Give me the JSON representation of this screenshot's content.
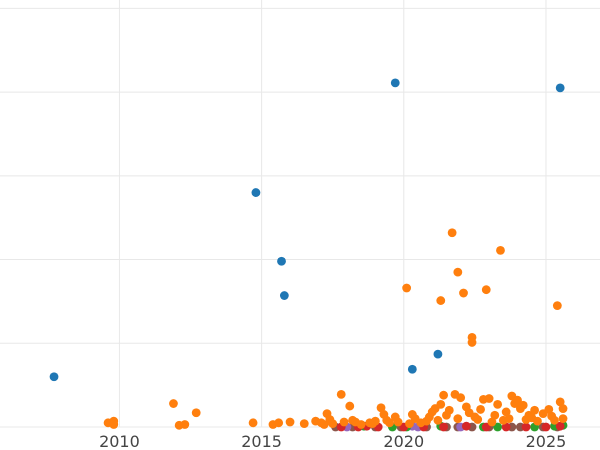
{
  "chart_data": {
    "type": "scatter",
    "title": "",
    "xlabel": "",
    "ylabel": "",
    "xlim": [
      2005.8,
      2026.9
    ],
    "ylim": [
      0,
      510
    ],
    "x_ticks": [
      2010,
      2015,
      2020,
      2025
    ],
    "x_tick_labels": [
      "2010",
      "2015",
      "2020",
      "2025"
    ],
    "y_gridlines": [
      0,
      100,
      200,
      300,
      400,
      500
    ],
    "grid": true,
    "legend": "none",
    "series": [
      {
        "color": "#1f77b4",
        "points": [
          [
            2007.7,
            60
          ],
          [
            2014.8,
            280
          ],
          [
            2015.7,
            198
          ],
          [
            2015.8,
            157
          ],
          [
            2019.7,
            411
          ],
          [
            2020.3,
            69
          ],
          [
            2021.2,
            87
          ],
          [
            2025.5,
            405
          ]
        ]
      },
      {
        "color": "#ff7f0e",
        "points": [
          [
            2009.6,
            5
          ],
          [
            2009.8,
            7
          ],
          [
            2009.8,
            3
          ],
          [
            2011.9,
            28
          ],
          [
            2012.1,
            2
          ],
          [
            2012.3,
            3
          ],
          [
            2012.7,
            17
          ],
          [
            2014.7,
            5
          ],
          [
            2015.4,
            3
          ],
          [
            2015.6,
            5
          ],
          [
            2016.0,
            6
          ],
          [
            2016.5,
            4
          ],
          [
            2016.9,
            7
          ],
          [
            2017.1,
            5
          ],
          [
            2017.2,
            3
          ],
          [
            2017.3,
            16
          ],
          [
            2017.4,
            9
          ],
          [
            2017.5,
            4
          ],
          [
            2017.8,
            39
          ],
          [
            2017.9,
            6
          ],
          [
            2018.1,
            25
          ],
          [
            2018.2,
            8
          ],
          [
            2018.3,
            6
          ],
          [
            2018.5,
            3
          ],
          [
            2018.8,
            5
          ],
          [
            2018.9,
            4
          ],
          [
            2019.0,
            7
          ],
          [
            2019.2,
            23
          ],
          [
            2019.3,
            15
          ],
          [
            2019.4,
            8
          ],
          [
            2019.5,
            5
          ],
          [
            2019.7,
            12
          ],
          [
            2019.8,
            6
          ],
          [
            2020.1,
            166
          ],
          [
            2020.2,
            4
          ],
          [
            2020.3,
            15
          ],
          [
            2020.4,
            10
          ],
          [
            2020.6,
            5
          ],
          [
            2020.8,
            7
          ],
          [
            2020.9,
            12
          ],
          [
            2021.0,
            18
          ],
          [
            2021.1,
            22
          ],
          [
            2021.2,
            8
          ],
          [
            2021.3,
            27
          ],
          [
            2021.3,
            151
          ],
          [
            2021.4,
            38
          ],
          [
            2021.5,
            14
          ],
          [
            2021.6,
            20
          ],
          [
            2021.7,
            232
          ],
          [
            2021.8,
            39
          ],
          [
            2021.9,
            185
          ],
          [
            2021.9,
            10
          ],
          [
            2022.0,
            35
          ],
          [
            2022.1,
            160
          ],
          [
            2022.2,
            24
          ],
          [
            2022.3,
            17
          ],
          [
            2022.4,
            107
          ],
          [
            2022.4,
            101
          ],
          [
            2022.5,
            12
          ],
          [
            2022.6,
            9
          ],
          [
            2022.7,
            21
          ],
          [
            2022.8,
            33
          ],
          [
            2022.9,
            164
          ],
          [
            2023.0,
            34
          ],
          [
            2023.1,
            6
          ],
          [
            2023.2,
            14
          ],
          [
            2023.3,
            27
          ],
          [
            2023.4,
            211
          ],
          [
            2023.5,
            8
          ],
          [
            2023.6,
            18
          ],
          [
            2023.7,
            10
          ],
          [
            2023.8,
            37
          ],
          [
            2023.9,
            28
          ],
          [
            2024.0,
            32
          ],
          [
            2024.1,
            22
          ],
          [
            2024.2,
            26
          ],
          [
            2024.3,
            9
          ],
          [
            2024.4,
            14
          ],
          [
            2024.5,
            11
          ],
          [
            2024.6,
            20
          ],
          [
            2024.7,
            7
          ],
          [
            2024.9,
            16
          ],
          [
            2025.1,
            21
          ],
          [
            2025.2,
            13
          ],
          [
            2025.3,
            8
          ],
          [
            2025.4,
            145
          ],
          [
            2025.5,
            30
          ],
          [
            2025.6,
            22
          ],
          [
            2025.6,
            10
          ]
        ]
      },
      {
        "color": "#d62728",
        "points": [
          [
            2017.8,
            0
          ],
          [
            2018.4,
            0
          ],
          [
            2018.7,
            1
          ],
          [
            2019.1,
            0
          ],
          [
            2020.0,
            0
          ],
          [
            2020.7,
            0
          ],
          [
            2021.4,
            0
          ],
          [
            2022.2,
            1
          ],
          [
            2022.9,
            0
          ],
          [
            2023.6,
            0
          ],
          [
            2024.3,
            0
          ],
          [
            2025.0,
            0
          ],
          [
            2025.5,
            1
          ]
        ]
      },
      {
        "color": "#2ca02c",
        "points": [
          [
            2018.6,
            1
          ],
          [
            2019.6,
            0
          ],
          [
            2020.1,
            0
          ],
          [
            2021.3,
            1
          ],
          [
            2022.8,
            0
          ],
          [
            2023.3,
            0
          ],
          [
            2024.6,
            0
          ],
          [
            2025.3,
            1
          ],
          [
            2025.6,
            2
          ]
        ]
      },
      {
        "color": "#9467bd",
        "points": [
          [
            2018.0,
            0
          ],
          [
            2020.3,
            1
          ],
          [
            2020.5,
            0
          ],
          [
            2022.0,
            0
          ]
        ]
      },
      {
        "color": "#8c564b",
        "points": [
          [
            2017.6,
            0
          ],
          [
            2018.2,
            0
          ],
          [
            2019.0,
            0
          ],
          [
            2019.9,
            0
          ],
          [
            2020.8,
            0
          ],
          [
            2021.5,
            0
          ],
          [
            2021.9,
            0
          ],
          [
            2022.4,
            0
          ],
          [
            2023.0,
            0
          ],
          [
            2023.8,
            0
          ],
          [
            2024.1,
            0
          ],
          [
            2024.9,
            0
          ],
          [
            2025.4,
            0
          ]
        ]
      }
    ]
  }
}
